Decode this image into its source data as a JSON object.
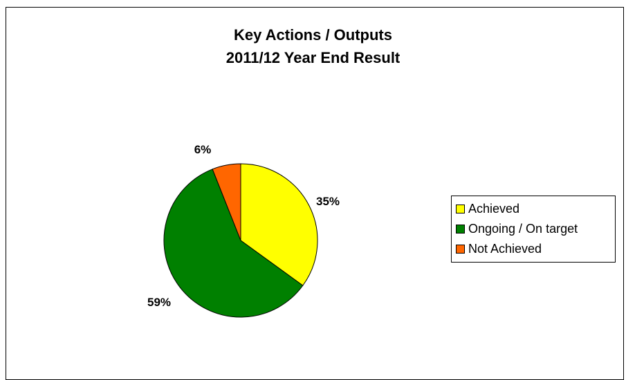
{
  "chart_data": {
    "type": "pie",
    "title_lines": [
      "Key Actions / Outputs",
      "2011/12 Year End Result"
    ],
    "categories": [
      "Achieved",
      "Ongoing / On target",
      "Not Achieved"
    ],
    "values": [
      35,
      59,
      6
    ],
    "data_labels": [
      "35%",
      "59%",
      "6%"
    ],
    "colors": [
      "#ffff00",
      "#008000",
      "#ff6600"
    ],
    "legend_position": "right"
  }
}
